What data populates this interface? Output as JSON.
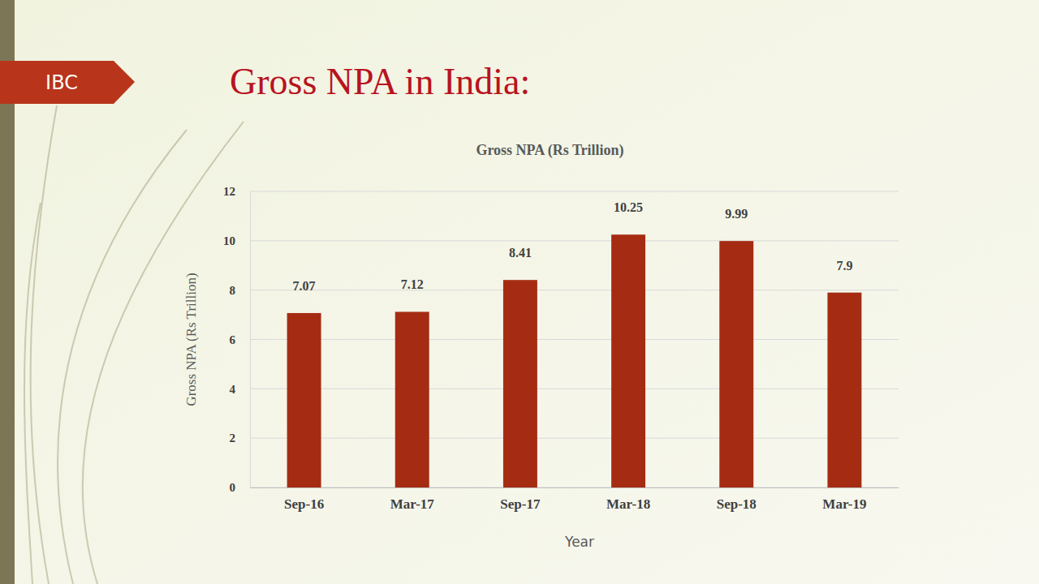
{
  "slide": {
    "tag": "IBC",
    "title": "Gross NPA in India:"
  },
  "chart_data": {
    "type": "bar",
    "title": "Gross NPA (Rs Trillion)",
    "x_label": "Year",
    "y_label": "Gross NPA (Rs Trillion)",
    "categories": [
      "Sep-16",
      "Mar-17",
      "Sep-17",
      "Mar-18",
      "Sep-18",
      "Mar-19"
    ],
    "values": [
      7.07,
      7.12,
      8.41,
      10.25,
      9.99,
      7.9
    ],
    "color": "#a52c12",
    "ylim": [
      0,
      12
    ],
    "yticks": [
      0,
      2,
      4,
      6,
      8,
      10,
      12
    ],
    "grid": true,
    "data_labels": true
  }
}
